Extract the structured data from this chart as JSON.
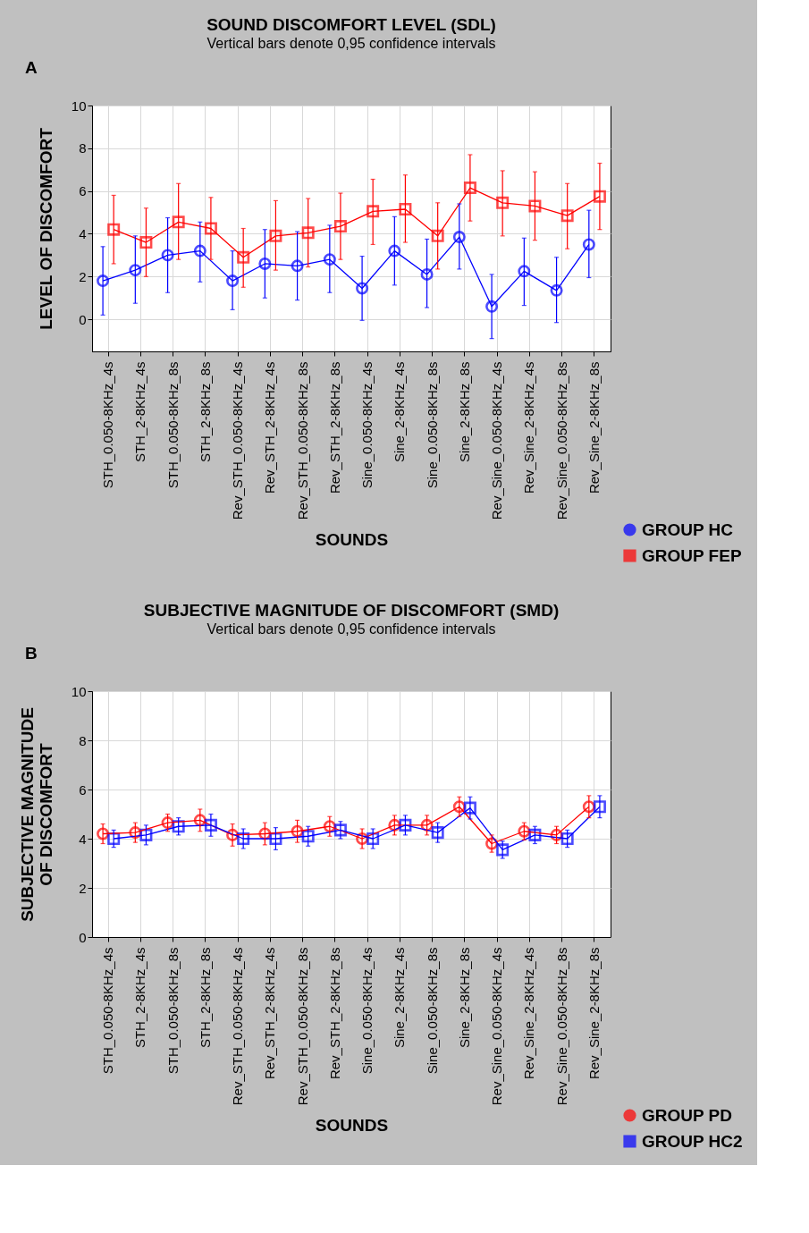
{
  "chart_data": [
    {
      "type": "line",
      "title": "SOUND DISCOMFORT LEVEL (SDL)",
      "subtitle": "Vertical bars denote 0,95 confidence intervals",
      "xlabel": "SOUNDS",
      "ylabel": "LEVEL OF DISCOMFORT",
      "annotations": [
        "A"
      ],
      "categories": [
        "STH_0.050-8KHz_4s",
        "STH_2-8KHz_4s",
        "STH_0.050-8KHz_8s",
        "STH_2-8KHz_8s",
        "Rev_STH_0.050-8KHz_4s",
        "Rev_STH_2-8KHz_4s",
        "Rev_STH_0.050-8KHz_8s",
        "Rev_STH_2-8KHz_8s",
        "Sine_0.050-8KHz_4s",
        "Sine_2-8KHz_4s",
        "Sine_0.050-8KHz_8s",
        "Sine_2-8KHz_8s",
        "Rev_Sine_0.050-8KHz_4s",
        "Rev_Sine_2-8KHz_4s",
        "Rev_Sine_0.050-8KHz_8s",
        "Rev_Sine_2-8KHz_8s"
      ],
      "series": [
        {
          "name": "GROUP HC",
          "color": "#0000ff",
          "marker": "circle",
          "values": [
            1.8,
            2.3,
            3.0,
            3.2,
            1.8,
            2.6,
            2.5,
            2.8,
            1.45,
            3.2,
            2.1,
            3.85,
            0.6,
            2.25,
            1.35,
            3.5
          ],
          "errors": [
            [
              0.2,
              3.4
            ],
            [
              0.75,
              3.9
            ],
            [
              1.25,
              4.75
            ],
            [
              1.75,
              4.55
            ],
            [
              0.45,
              3.2
            ],
            [
              1.0,
              4.2
            ],
            [
              0.9,
              4.1
            ],
            [
              1.25,
              4.4
            ],
            [
              -0.05,
              2.95
            ],
            [
              1.6,
              4.8
            ],
            [
              0.55,
              3.75
            ],
            [
              2.35,
              5.4
            ],
            [
              -0.9,
              2.1
            ],
            [
              0.65,
              3.8
            ],
            [
              -0.15,
              2.9
            ],
            [
              1.95,
              5.1
            ]
          ]
        },
        {
          "name": "GROUP FEP",
          "color": "#ff0000",
          "marker": "square",
          "values": [
            4.2,
            3.6,
            4.55,
            4.25,
            2.9,
            3.9,
            4.05,
            4.35,
            5.05,
            5.15,
            3.9,
            6.15,
            5.45,
            5.3,
            4.85,
            5.75
          ],
          "errors": [
            [
              2.6,
              5.8
            ],
            [
              2.0,
              5.2
            ],
            [
              2.8,
              6.35
            ],
            [
              2.8,
              5.7
            ],
            [
              1.5,
              4.25
            ],
            [
              2.3,
              5.55
            ],
            [
              2.45,
              5.65
            ],
            [
              2.8,
              5.9
            ],
            [
              3.5,
              6.55
            ],
            [
              3.6,
              6.75
            ],
            [
              2.35,
              5.45
            ],
            [
              4.6,
              7.7
            ],
            [
              3.9,
              6.95
            ],
            [
              3.7,
              6.9
            ],
            [
              3.3,
              6.35
            ],
            [
              4.2,
              7.3
            ]
          ]
        }
      ],
      "ylim": [
        -1.5,
        10
      ],
      "yticks": [
        0,
        2,
        4,
        6,
        8,
        10
      ],
      "grid": true,
      "legend": "bottom right"
    },
    {
      "type": "line",
      "title": "SUBJECTIVE MAGNITUDE OF DISCOMFORT (SMD)",
      "subtitle": "Vertical bars denote 0,95 confidence intervals",
      "xlabel": "SOUNDS",
      "ylabel": "SUBJECTIVE MAGNITUDE\nOF DISCOMFORT",
      "annotations": [
        "B"
      ],
      "categories": [
        "STH_0.050-8KHz_4s",
        "STH_2-8KHz_4s",
        "STH_0.050-8KHz_8s",
        "STH_2-8KHz_8s",
        "Rev_STH_0.050-8KHz_4s",
        "Rev_STH_2-8KHz_4s",
        "Rev_STH_0.050-8KHz_8s",
        "Rev_STH_2-8KHz_8s",
        "Sine_0.050-8KHz_4s",
        "Sine_2-8KHz_4s",
        "Sine_0.050-8KHz_8s",
        "Sine_2-8KHz_8s",
        "Rev_Sine_0.050-8KHz_4s",
        "Rev_Sine_2-8KHz_4s",
        "Rev_Sine_0.050-8KHz_8s",
        "Rev_Sine_2-8KHz_8s"
      ],
      "series": [
        {
          "name": "GROUP PD",
          "color": "#ff0000",
          "marker": "circle",
          "values": [
            4.2,
            4.25,
            4.65,
            4.75,
            4.15,
            4.2,
            4.3,
            4.5,
            4.0,
            4.55,
            4.55,
            5.3,
            3.8,
            4.3,
            4.15,
            5.3
          ],
          "errors": [
            0.4,
            0.4,
            0.35,
            0.45,
            0.45,
            0.45,
            0.45,
            0.4,
            0.4,
            0.4,
            0.4,
            0.4,
            0.35,
            0.35,
            0.35,
            0.45
          ]
        },
        {
          "name": "GROUP HC2",
          "color": "#0000ff",
          "marker": "square",
          "values": [
            4.0,
            4.15,
            4.5,
            4.55,
            4.0,
            4.0,
            4.1,
            4.35,
            4.0,
            4.55,
            4.25,
            5.25,
            3.55,
            4.15,
            4.0,
            5.3
          ],
          "errors": [
            0.35,
            0.4,
            0.35,
            0.45,
            0.4,
            0.45,
            0.4,
            0.35,
            0.4,
            0.4,
            0.4,
            0.45,
            0.35,
            0.35,
            0.35,
            0.45
          ]
        }
      ],
      "ylim": [
        0,
        10
      ],
      "yticks": [
        0,
        2,
        4,
        6,
        8,
        10
      ],
      "grid": true,
      "legend": "bottom right"
    }
  ]
}
